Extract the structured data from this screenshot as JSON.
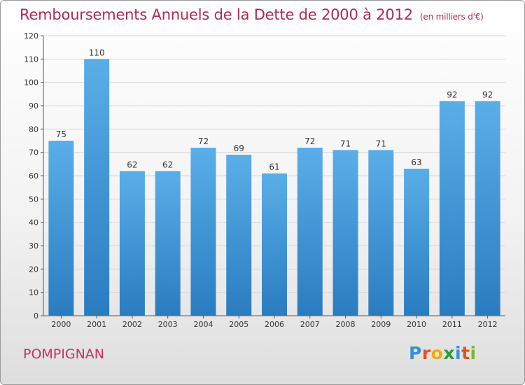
{
  "chart_data": {
    "type": "bar",
    "title": "Remboursements Annuels de la Dette de 2000 à 2012",
    "unit": "(en milliers d'€)",
    "categories": [
      "2000",
      "2001",
      "2002",
      "2003",
      "2004",
      "2005",
      "2006",
      "2007",
      "2008",
      "2009",
      "2010",
      "2011",
      "2012"
    ],
    "values": [
      75,
      110,
      62,
      62,
      72,
      69,
      61,
      72,
      71,
      71,
      63,
      92,
      92
    ],
    "ylim": [
      0,
      120
    ],
    "yticks": [
      0,
      10,
      20,
      30,
      40,
      50,
      60,
      70,
      80,
      90,
      100,
      110,
      120
    ],
    "grid": true,
    "bar_color": "#3d92d4",
    "xlabel": "",
    "ylabel": ""
  },
  "commune": "POMPIGNAN",
  "logo": {
    "letters": [
      "P",
      "r",
      "o",
      "x",
      "i",
      "t",
      "i"
    ],
    "colors": [
      "#3a8fd8",
      "#e94e1b",
      "#f2a900",
      "#2d9a3e",
      "#3a8fd8",
      "#e94e1b",
      "#7cb82f"
    ]
  }
}
